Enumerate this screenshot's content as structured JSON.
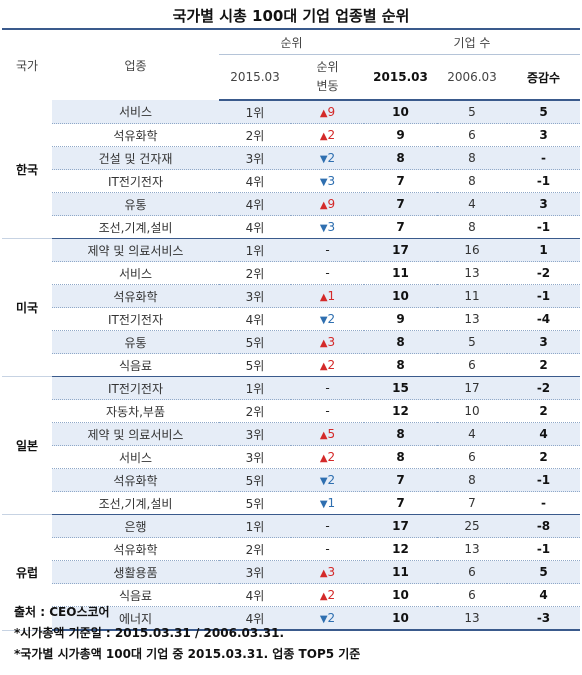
{
  "title": "국가별 시총 100대 기업 업종별 순위",
  "header": {
    "country": "국가",
    "industry": "업종",
    "rank_group": "순위",
    "count_group": "기업 수",
    "rank_2015": "2015.03",
    "rank_change": "순위\n변동",
    "count_2015": "2015.03",
    "count_2006": "2006.03",
    "diff": "증감수"
  },
  "groups": [
    {
      "country": "한국",
      "rows": [
        {
          "industry": "서비스",
          "rank": "1위",
          "dir": "up",
          "arrow": "▲",
          "chg": "9",
          "n15": "10",
          "n06": "5",
          "diff": "5"
        },
        {
          "industry": "석유화학",
          "rank": "2위",
          "dir": "up",
          "arrow": "▲",
          "chg": "2",
          "n15": "9",
          "n06": "6",
          "diff": "3"
        },
        {
          "industry": "건설 및 건자재",
          "rank": "3위",
          "dir": "down",
          "arrow": "▼",
          "chg": "2",
          "n15": "8",
          "n06": "8",
          "diff": "-"
        },
        {
          "industry": "IT전기전자",
          "rank": "4위",
          "dir": "down",
          "arrow": "▼",
          "chg": "3",
          "n15": "7",
          "n06": "8",
          "diff": "-1"
        },
        {
          "industry": "유통",
          "rank": "4위",
          "dir": "up",
          "arrow": "▲",
          "chg": "9",
          "n15": "7",
          "n06": "4",
          "diff": "3"
        },
        {
          "industry": "조선,기계,설비",
          "rank": "4위",
          "dir": "down",
          "arrow": "▼",
          "chg": "3",
          "n15": "7",
          "n06": "8",
          "diff": "-1"
        }
      ]
    },
    {
      "country": "미국",
      "rows": [
        {
          "industry": "제약 및 의료서비스",
          "rank": "1위",
          "dir": "none",
          "arrow": "",
          "chg": "-",
          "n15": "17",
          "n06": "16",
          "diff": "1"
        },
        {
          "industry": "서비스",
          "rank": "2위",
          "dir": "none",
          "arrow": "",
          "chg": "-",
          "n15": "11",
          "n06": "13",
          "diff": "-2"
        },
        {
          "industry": "석유화학",
          "rank": "3위",
          "dir": "up",
          "arrow": "▲",
          "chg": "1",
          "n15": "10",
          "n06": "11",
          "diff": "-1"
        },
        {
          "industry": "IT전기전자",
          "rank": "4위",
          "dir": "down",
          "arrow": "▼",
          "chg": "2",
          "n15": "9",
          "n06": "13",
          "diff": "-4"
        },
        {
          "industry": "유통",
          "rank": "5위",
          "dir": "up",
          "arrow": "▲",
          "chg": "3",
          "n15": "8",
          "n06": "5",
          "diff": "3"
        },
        {
          "industry": "식음료",
          "rank": "5위",
          "dir": "up",
          "arrow": "▲",
          "chg": "2",
          "n15": "8",
          "n06": "6",
          "diff": "2"
        }
      ]
    },
    {
      "country": "일본",
      "rows": [
        {
          "industry": "IT전기전자",
          "rank": "1위",
          "dir": "none",
          "arrow": "",
          "chg": "-",
          "n15": "15",
          "n06": "17",
          "diff": "-2"
        },
        {
          "industry": "자동차,부품",
          "rank": "2위",
          "dir": "none",
          "arrow": "",
          "chg": "-",
          "n15": "12",
          "n06": "10",
          "diff": "2"
        },
        {
          "industry": "제약 및 의료서비스",
          "rank": "3위",
          "dir": "up",
          "arrow": "▲",
          "chg": "5",
          "n15": "8",
          "n06": "4",
          "diff": "4"
        },
        {
          "industry": "서비스",
          "rank": "3위",
          "dir": "up",
          "arrow": "▲",
          "chg": "2",
          "n15": "8",
          "n06": "6",
          "diff": "2"
        },
        {
          "industry": "석유화학",
          "rank": "5위",
          "dir": "down",
          "arrow": "▼",
          "chg": "2",
          "n15": "7",
          "n06": "8",
          "diff": "-1"
        },
        {
          "industry": "조선,기계,설비",
          "rank": "5위",
          "dir": "down",
          "arrow": "▼",
          "chg": "1",
          "n15": "7",
          "n06": "7",
          "diff": "-"
        }
      ]
    },
    {
      "country": "유럽",
      "rows": [
        {
          "industry": "은행",
          "rank": "1위",
          "dir": "none",
          "arrow": "",
          "chg": "-",
          "n15": "17",
          "n06": "25",
          "diff": "-8"
        },
        {
          "industry": "석유화학",
          "rank": "2위",
          "dir": "none",
          "arrow": "",
          "chg": "-",
          "n15": "12",
          "n06": "13",
          "diff": "-1"
        },
        {
          "industry": "생활용품",
          "rank": "3위",
          "dir": "up",
          "arrow": "▲",
          "chg": "3",
          "n15": "11",
          "n06": "6",
          "diff": "5"
        },
        {
          "industry": "식음료",
          "rank": "4위",
          "dir": "up",
          "arrow": "▲",
          "chg": "2",
          "n15": "10",
          "n06": "6",
          "diff": "4"
        },
        {
          "industry": "에너지",
          "rank": "4위",
          "dir": "down",
          "arrow": "▼",
          "chg": "2",
          "n15": "10",
          "n06": "13",
          "diff": "-3"
        }
      ]
    }
  ],
  "notes": [
    "출처 : CEO스코어",
    "*시가총액 기준일 : 2015.03.31 / 2006.03.31.",
    "*국가별 시가총액 100대 기업 중 2015.03.31. 업종 TOP5 기준"
  ]
}
